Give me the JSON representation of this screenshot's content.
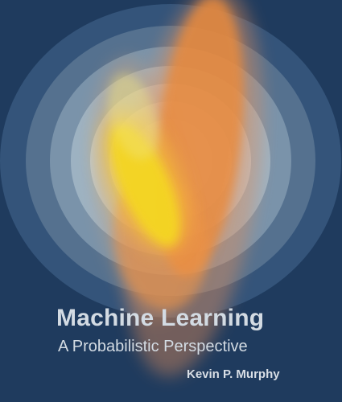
{
  "book": {
    "title": "Machine Learning",
    "subtitle": "A Probabilistic Perspective",
    "author": "Kevin P. Murphy"
  },
  "colors": {
    "background": "#1f3b5e",
    "ring_outer": "#3e5c7e",
    "ring_light": "#dfe6ec",
    "orange": "#ec8a3a",
    "yellow": "#f3d226",
    "text": "#d3dbe3"
  }
}
